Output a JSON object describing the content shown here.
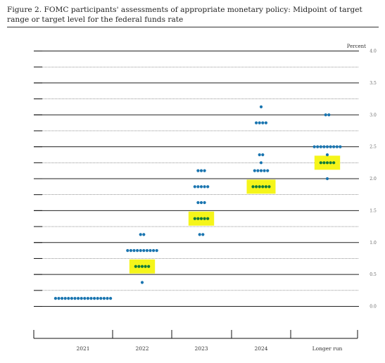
{
  "title": "Figure 2.  FOMC participants' assessments of appropriate monetary policy: Midpoint of target range or target level for the federal funds rate",
  "chart_data": {
    "type": "scatter",
    "title": "Figure 2.  FOMC participants' assessments of appropriate monetary policy: Midpoint of target range or target level for the federal funds rate",
    "ylabel": "Percent",
    "xlabel": "",
    "ylim": [
      0,
      4
    ],
    "yticks": [
      "0.0",
      "0.5",
      "1.0",
      "1.5",
      "2.0",
      "2.5",
      "3.0",
      "3.5",
      "4.0"
    ],
    "categories": [
      "2021",
      "2022",
      "2023",
      "2024",
      "Longer run"
    ],
    "grid": "horizontal",
    "dot_color": "#1a75b0",
    "median_highlight_color": "#f5f51a",
    "dots": [
      {
        "category": "2021",
        "y": 0.125,
        "count": 18
      },
      {
        "category": "2022",
        "y": 0.375,
        "count": 1
      },
      {
        "category": "2022",
        "y": 0.625,
        "count": 5,
        "median": true
      },
      {
        "category": "2022",
        "y": 0.875,
        "count": 10
      },
      {
        "category": "2022",
        "y": 1.125,
        "count": 2
      },
      {
        "category": "2023",
        "y": 1.125,
        "count": 2
      },
      {
        "category": "2023",
        "y": 1.375,
        "count": 5,
        "median": true
      },
      {
        "category": "2023",
        "y": 1.625,
        "count": 3
      },
      {
        "category": "2023",
        "y": 1.875,
        "count": 5
      },
      {
        "category": "2023",
        "y": 2.125,
        "count": 3
      },
      {
        "category": "2024",
        "y": 1.875,
        "count": 6,
        "median": true
      },
      {
        "category": "2024",
        "y": 2.125,
        "count": 5
      },
      {
        "category": "2024",
        "y": 2.25,
        "count": 1
      },
      {
        "category": "2024",
        "y": 2.375,
        "count": 2
      },
      {
        "category": "2024",
        "y": 2.875,
        "count": 4
      },
      {
        "category": "2024",
        "y": 3.125,
        "count": 1
      },
      {
        "category": "Longer run",
        "y": 2.0,
        "count": 1
      },
      {
        "category": "Longer run",
        "y": 2.25,
        "count": 5,
        "median": true
      },
      {
        "category": "Longer run",
        "y": 2.375,
        "count": 1
      },
      {
        "category": "Longer run",
        "y": 2.5,
        "count": 9
      },
      {
        "category": "Longer run",
        "y": 3.0,
        "count": 2
      }
    ]
  }
}
